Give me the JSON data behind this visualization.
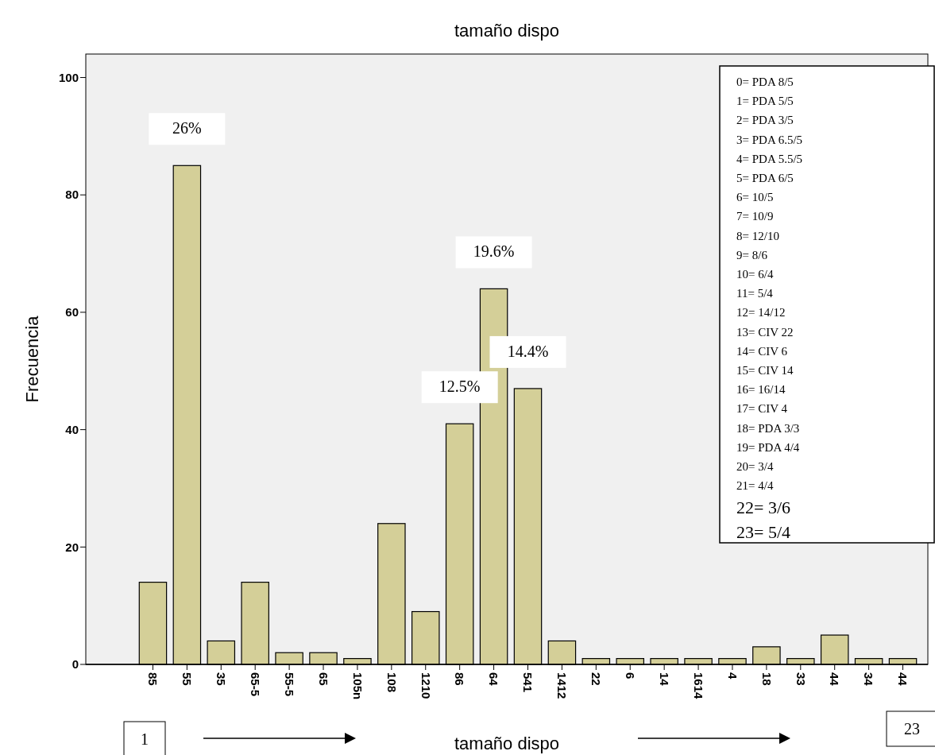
{
  "chart_data": {
    "type": "bar",
    "title": "tamaño dispo",
    "xlabel": "tamaño dispo",
    "ylabel": "Frecuencia",
    "categories": [
      "85",
      "55",
      "35",
      "65-5",
      "55-5",
      "65",
      "105n",
      "108",
      "1210",
      "86",
      "64",
      "541",
      "1412",
      "22",
      "6",
      "14",
      "1614",
      "4",
      "18",
      "33",
      "44",
      "34",
      "44"
    ],
    "values": [
      14,
      85,
      4,
      14,
      2,
      2,
      1,
      24,
      9,
      41,
      64,
      47,
      4,
      1,
      1,
      1,
      1,
      1,
      3,
      1,
      5,
      1,
      1
    ],
    "color": "#d4cf98",
    "ylim": [
      0,
      104
    ],
    "yticks": [
      0,
      20,
      40,
      60,
      80,
      100
    ],
    "grid": false,
    "annotations": [
      {
        "text": "26%",
        "x": "55",
        "y": 85
      },
      {
        "text": "12.5%",
        "x": "86",
        "y": 41
      },
      {
        "text": "19.6%",
        "x": "64",
        "y": 64
      },
      {
        "text": "14.4%",
        "x": "541",
        "y": 47
      },
      "0= PDA 8/5",
      "1= PDA 5/5",
      "2= PDA 3/5",
      "3= PDA 6.5/5",
      "4= PDA 5.5/5",
      "5= PDA 6/5",
      "6= 10/5",
      "7= 10/9",
      "8= 12/10",
      "9= 8/6",
      "10= 6/4",
      "11= 5/4",
      "12= 14/12",
      "13= CIV 22",
      "14= CIV 6",
      "15= CIV 14",
      "16= 16/14",
      "17= CIV 4",
      "18= PDA 3/3",
      "19= PDA 4/4",
      "20= 3/4",
      "21= 4/4",
      "22= 3/6",
      "23= 5/4",
      "1",
      "23"
    ]
  }
}
